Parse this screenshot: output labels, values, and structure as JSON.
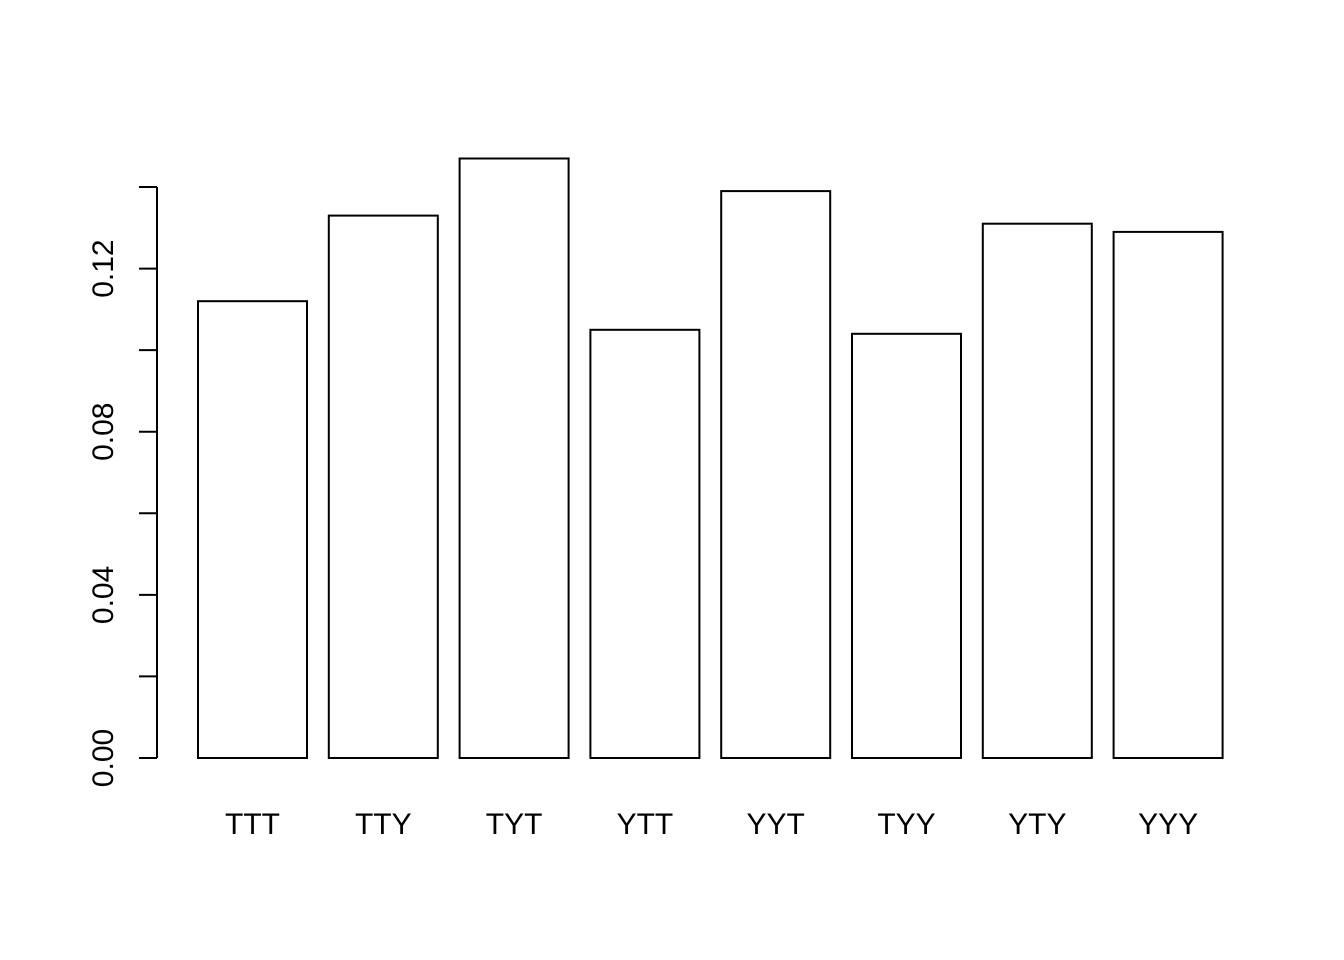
{
  "chart_data": {
    "type": "bar",
    "title": "",
    "xlabel": "",
    "ylabel": "",
    "categories": [
      "TTT",
      "TTY",
      "TYT",
      "YTT",
      "YYT",
      "TYY",
      "YTY",
      "YYY"
    ],
    "values": [
      0.112,
      0.133,
      0.147,
      0.105,
      0.139,
      0.104,
      0.131,
      0.129
    ],
    "ylim": [
      0,
      0.14
    ],
    "yticks": [
      0,
      0.02,
      0.04,
      0.06,
      0.08,
      0.1,
      0.12,
      0.14
    ],
    "ytick_labels": [
      "0.00",
      "",
      "0.04",
      "",
      "0.08",
      "",
      "0.12",
      ""
    ],
    "grid": false,
    "colors": {
      "bar_fill": "#ffffff",
      "bar_stroke": "#000000",
      "axis": "#000000"
    }
  }
}
